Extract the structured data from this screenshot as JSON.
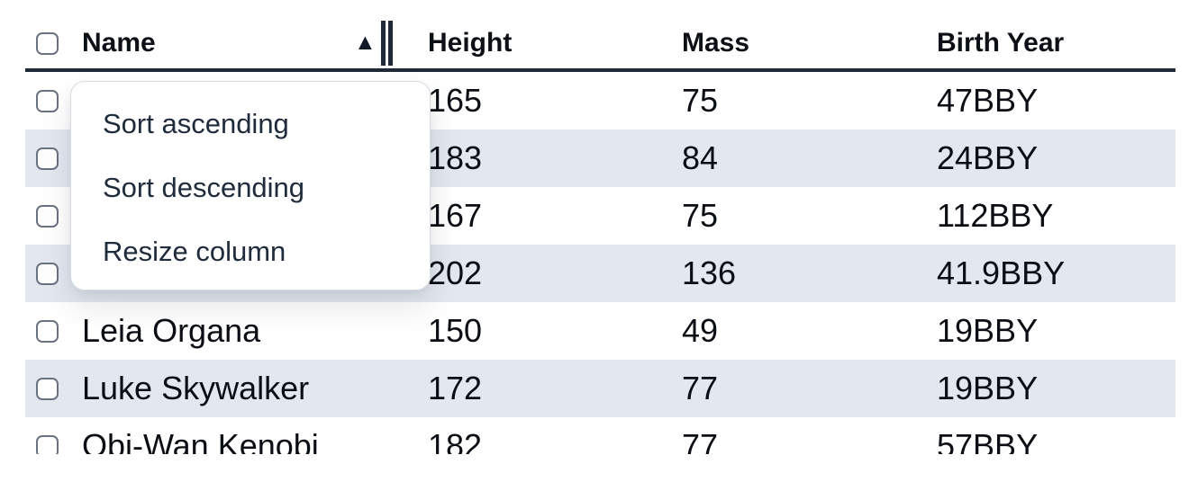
{
  "table": {
    "columns": [
      {
        "label": "Name",
        "sorted": "ascending"
      },
      {
        "label": "Height"
      },
      {
        "label": "Mass"
      },
      {
        "label": "Birth Year"
      }
    ],
    "rows": [
      {
        "name": "",
        "height": "165",
        "mass": "75",
        "birth_year": "47BBY"
      },
      {
        "name": "",
        "height": "183",
        "mass": "84",
        "birth_year": "24BBY"
      },
      {
        "name": "",
        "height": "167",
        "mass": "75",
        "birth_year": "112BBY"
      },
      {
        "name": "",
        "height": "202",
        "mass": "136",
        "birth_year": "41.9BBY"
      },
      {
        "name": "Leia Organa",
        "height": "150",
        "mass": "49",
        "birth_year": "19BBY"
      },
      {
        "name": "Luke Skywalker",
        "height": "172",
        "mass": "77",
        "birth_year": "19BBY"
      },
      {
        "name": "Obi-Wan Kenobi",
        "height": "182",
        "mass": "77",
        "birth_year": "57BBY"
      }
    ]
  },
  "menu": {
    "items": [
      "Sort ascending",
      "Sort descending",
      "Resize column"
    ]
  },
  "icons": {
    "sort_ascending": "▲"
  },
  "colors": {
    "row_stripe": "#e3e8ef",
    "header_border": "#1f2937",
    "menu_border": "#d7dce4",
    "checkbox_border": "#6b7280",
    "text": "#0b0e14",
    "menu_text": "#202b3b"
  }
}
